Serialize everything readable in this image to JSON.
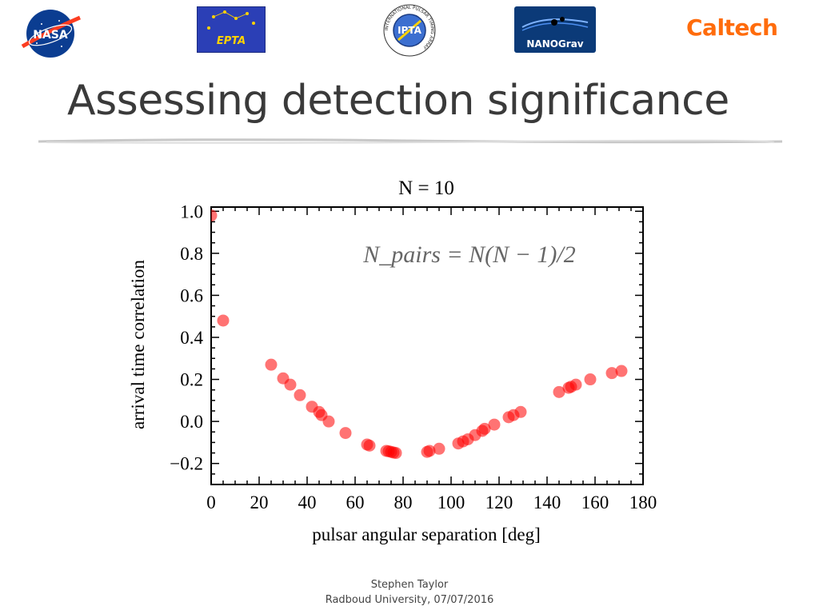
{
  "title": "Assessing detection significance",
  "logos": {
    "nasa": "NASA",
    "epta": "EPTA",
    "ipta": "IPTA",
    "ipta_ring": "INTERNATIONAL PULSAR TIMING ARRAY",
    "nanograv": "NANOGrav",
    "caltech": "Caltech"
  },
  "footer": {
    "author": "Stephen Taylor",
    "affiliation_date": "Radboud University, 07/07/2016"
  },
  "chart_data": {
    "type": "scatter",
    "title": "N = 10",
    "annotation": "N_pairs = N(N − 1)/2",
    "xlabel": "pulsar angular separation [deg]",
    "ylabel": "arrival time correlation",
    "xlim": [
      0,
      180
    ],
    "ylim": [
      -0.3,
      1.02
    ],
    "xticks": [
      0,
      20,
      40,
      60,
      80,
      100,
      120,
      140,
      160,
      180
    ],
    "yticks": [
      -0.2,
      0.0,
      0.2,
      0.4,
      0.6,
      0.8,
      1.0
    ],
    "ytick_labels": [
      "−0.2",
      "0.0",
      "0.2",
      "0.4",
      "0.6",
      "0.8",
      "1.0"
    ],
    "marker_color": "#ff0000",
    "grid": false,
    "x": [
      0,
      5,
      25,
      30,
      33,
      37,
      42,
      45,
      46,
      49,
      56,
      65,
      66,
      73,
      74,
      75,
      76,
      77,
      90,
      91,
      95,
      103,
      105,
      107,
      110,
      113,
      114,
      118,
      124,
      126,
      129,
      145,
      149,
      150,
      152,
      158,
      167,
      171
    ],
    "y": [
      0.98,
      0.48,
      0.27,
      0.205,
      0.175,
      0.125,
      0.07,
      0.045,
      0.03,
      0.0,
      -0.055,
      -0.11,
      -0.115,
      -0.14,
      -0.142,
      -0.145,
      -0.148,
      -0.15,
      -0.145,
      -0.14,
      -0.13,
      -0.105,
      -0.095,
      -0.085,
      -0.065,
      -0.045,
      -0.035,
      -0.015,
      0.02,
      0.03,
      0.045,
      0.14,
      0.16,
      0.165,
      0.175,
      0.2,
      0.23,
      0.24
    ]
  }
}
